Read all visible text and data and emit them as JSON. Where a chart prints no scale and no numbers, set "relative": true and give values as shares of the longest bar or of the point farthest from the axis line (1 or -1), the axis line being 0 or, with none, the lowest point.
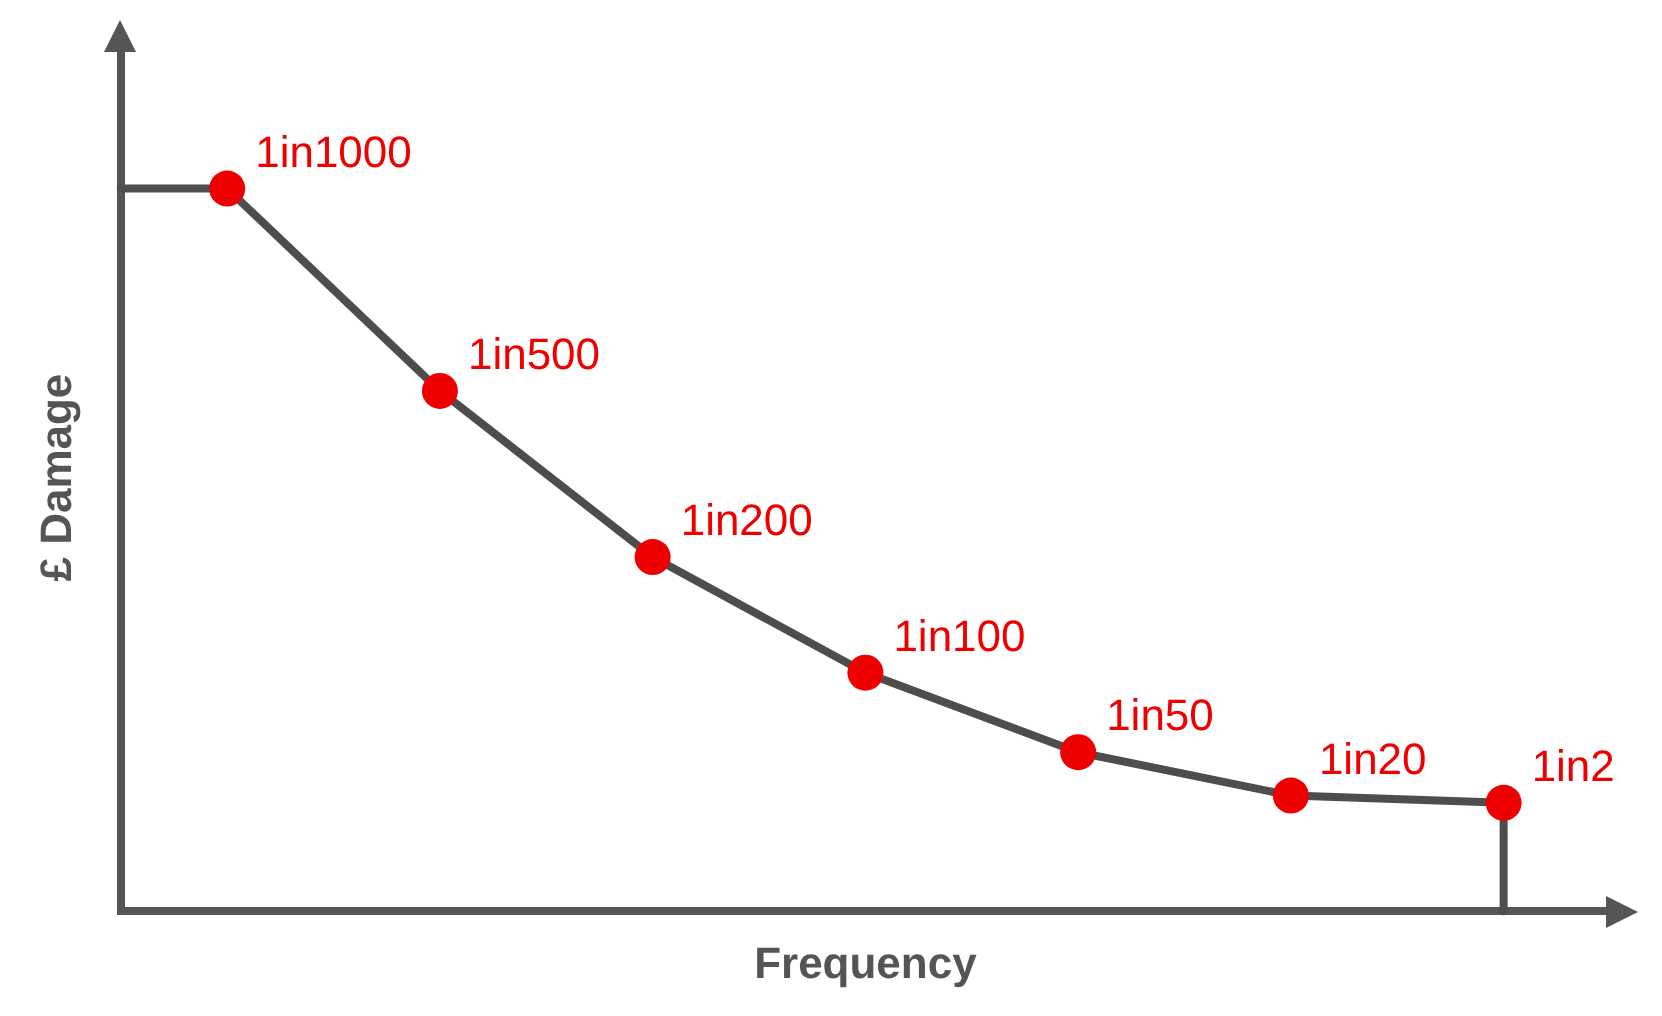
{
  "chart_data": {
    "type": "line",
    "relative": true,
    "xlabel": "Frequency",
    "ylabel": "£ Damage",
    "categories": [
      null,
      null,
      null,
      null,
      null,
      null,
      null
    ],
    "series": [
      {
        "color": "#4d4d4d",
        "colors": [
          "#ee0000",
          "#ee0000",
          "#ee0000",
          "#ee0000",
          "#ee0000",
          "#ee0000",
          "#ee0000"
        ],
        "values": [
          1,
          0.72,
          0.49,
          0.33,
          0.22,
          0.16,
          0.15
        ]
      }
    ],
    "marker": "circle",
    "line_style": "solid",
    "grid": false,
    "legend": false,
    "annotations": [
      "1in1000",
      "1in500",
      "1in200",
      "1in100",
      "1in50",
      "1in20",
      "1in2"
    ]
  }
}
